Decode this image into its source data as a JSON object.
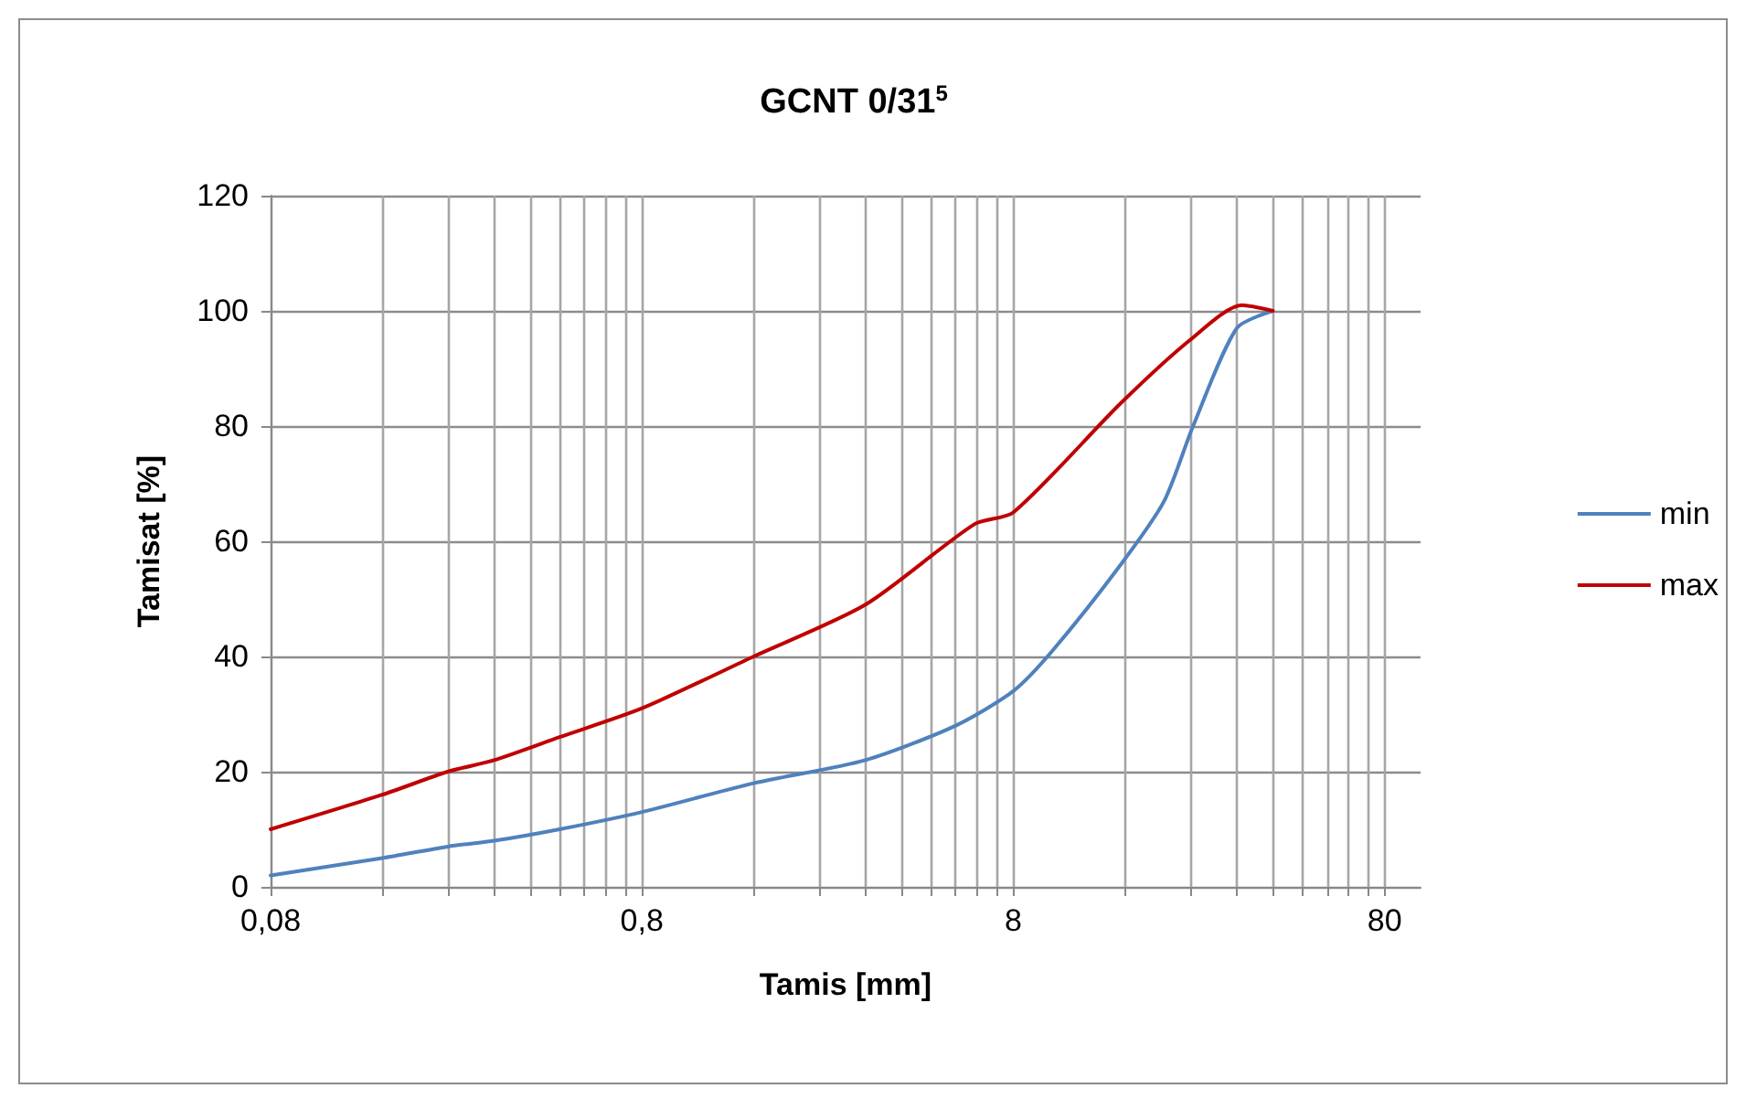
{
  "chart_data": {
    "type": "line",
    "title": "GCNT 0/31$^{5}$",
    "xlabel": "Tamis [mm]",
    "ylabel": "Tamisat [%]",
    "log": "x",
    "xlim": [
      0.08,
      100
    ],
    "ylim": [
      0,
      120
    ],
    "xticks": [
      {
        "value": 0.08,
        "label": "0,08"
      },
      {
        "value": 0.16,
        "label": null
      },
      {
        "value": 0.24,
        "label": null
      },
      {
        "value": 0.32,
        "label": null
      },
      {
        "value": 0.4,
        "label": null
      },
      {
        "value": 0.48,
        "label": null
      },
      {
        "value": 0.56,
        "label": null
      },
      {
        "value": 0.64,
        "label": null
      },
      {
        "value": 0.72,
        "label": null
      },
      {
        "value": 0.8,
        "label": "0,8"
      },
      {
        "value": 1.6,
        "label": null
      },
      {
        "value": 2.4,
        "label": null
      },
      {
        "value": 3.2,
        "label": null
      },
      {
        "value": 4,
        "label": null
      },
      {
        "value": 4.8,
        "label": null
      },
      {
        "value": 5.6,
        "label": null
      },
      {
        "value": 6.4,
        "label": null
      },
      {
        "value": 7.2,
        "label": null
      },
      {
        "value": 8,
        "label": "8"
      },
      {
        "value": 16,
        "label": null
      },
      {
        "value": 24,
        "label": null
      },
      {
        "value": 32,
        "label": null
      },
      {
        "value": 40,
        "label": null
      },
      {
        "value": 48,
        "label": null
      },
      {
        "value": 56,
        "label": null
      },
      {
        "value": 64,
        "label": null
      },
      {
        "value": 72,
        "label": null
      },
      {
        "value": 80,
        "label": "80"
      }
    ],
    "yticks": [
      0,
      20,
      40,
      60,
      80,
      100,
      120
    ],
    "grid": true,
    "legend": "right",
    "marker": "none",
    "line_style": "solid",
    "series": [
      {
        "name": "min",
        "color": "#4f81bd",
        "x": [
          0.08,
          0.16,
          0.24,
          0.32,
          0.48,
          0.8,
          1.6,
          3.2,
          5.6,
          8,
          10.2,
          15.6,
          20.4,
          24.4,
          32,
          40
        ],
        "values": [
          2,
          5,
          7,
          8,
          10,
          13,
          18,
          22,
          28,
          34,
          41,
          56,
          67,
          80,
          97,
          100
        ]
      },
      {
        "name": "max",
        "color": "#c00000",
        "x": [
          0.08,
          0.16,
          0.24,
          0.32,
          0.48,
          0.8,
          1.6,
          3.2,
          6.3,
          8,
          15.6,
          24,
          33,
          40
        ],
        "values": [
          10,
          16,
          20,
          22,
          26,
          31,
          40,
          49,
          63,
          65,
          84,
          95,
          101,
          100
        ]
      }
    ]
  }
}
